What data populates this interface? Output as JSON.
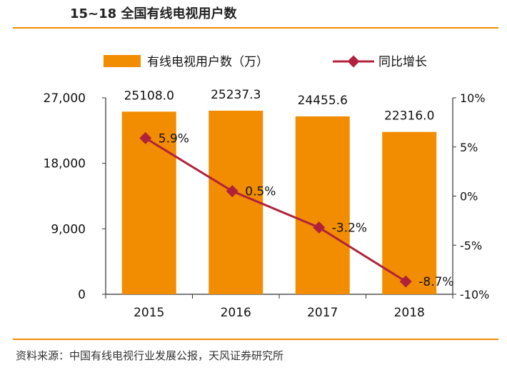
{
  "header": {
    "title": "15~18 全国有线电视用户数"
  },
  "footer": {
    "source": "资料来源：中国有线电视行业发展公报，天风证券研究所"
  },
  "chart_data": {
    "type": "bar",
    "categories": [
      "2015",
      "2016",
      "2017",
      "2018"
    ],
    "series": [
      {
        "name": "有线电视用户数（万）",
        "type": "bar",
        "axis": "left",
        "values": [
          25108.0,
          25237.3,
          24455.6,
          22316.0
        ],
        "labels": [
          "25108.0",
          "25237.3",
          "24455.6",
          "22316.0"
        ],
        "color": "#f28c00"
      },
      {
        "name": "同比增长",
        "type": "line",
        "axis": "right",
        "values": [
          5.9,
          0.5,
          -3.2,
          -8.7
        ],
        "labels": [
          "5.9%",
          "0.5%",
          "-3.2%",
          "-8.7%"
        ],
        "color": "#b0223c"
      }
    ],
    "y_left": {
      "ylim": [
        0,
        27000
      ],
      "ticks": [
        0,
        9000,
        18000,
        27000
      ],
      "tick_labels": [
        "0",
        "9,000",
        "18,000",
        "27,000"
      ]
    },
    "y_right": {
      "ylim": [
        -10,
        10
      ],
      "ticks": [
        -10,
        -5,
        0,
        5,
        10
      ],
      "tick_labels": [
        "-10%",
        "-5%",
        "0%",
        "5%",
        "10%"
      ]
    },
    "legend": "top",
    "grid": false
  }
}
